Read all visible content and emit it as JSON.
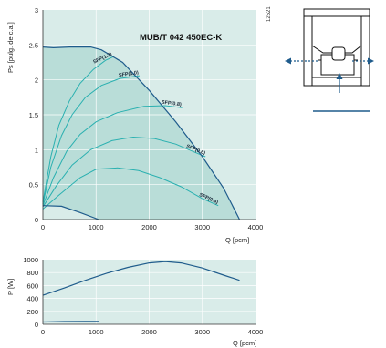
{
  "side_number": "12521",
  "chart_data": [
    {
      "type": "line",
      "title": "MUB/T 042 450EC-K",
      "xlabel": "Q [pcm]",
      "ylabel": "Ps [pulg. de c.a.]",
      "xlim": [
        0,
        4000
      ],
      "ylim": [
        0,
        3
      ],
      "xticks": [
        0,
        1000,
        2000,
        3000,
        4000
      ],
      "yticks": [
        0,
        0.5,
        1,
        1.5,
        2,
        2.5,
        3
      ],
      "grid": true,
      "colors": {
        "plot_bg": "#d9ece9",
        "operating_area": "#b9ddd8",
        "curve": "#1f5c8c",
        "sfp_curve": "#2ab0b0"
      },
      "fan_curve": {
        "x": [
          0,
          200,
          500,
          900,
          1100,
          1500,
          2000,
          2500,
          3000,
          3400,
          3700
        ],
        "y": [
          2.47,
          2.46,
          2.47,
          2.47,
          2.43,
          2.25,
          1.85,
          1.4,
          0.9,
          0.45,
          0.0
        ]
      },
      "min_curve": {
        "x": [
          0,
          350,
          700,
          1050
        ],
        "y": [
          0.2,
          0.19,
          0.1,
          0.0
        ]
      },
      "series": [
        {
          "name": "SFP(1.2)",
          "label": "SFP(1.2)",
          "x": [
            0,
            150,
            300,
            500,
            700,
            950,
            1180,
            1320
          ],
          "y": [
            0.25,
            0.9,
            1.35,
            1.7,
            1.95,
            2.15,
            2.28,
            2.33
          ]
        },
        {
          "name": "SFP(1.0)",
          "label": "SFP(1.0)",
          "x": [
            0,
            150,
            350,
            550,
            800,
            1100,
            1450,
            1820
          ],
          "y": [
            0.22,
            0.75,
            1.2,
            1.5,
            1.75,
            1.92,
            2.02,
            2.06
          ]
        },
        {
          "name": "SFP(0.8)",
          "label": "SFP(0.8)",
          "x": [
            0,
            200,
            450,
            700,
            1000,
            1400,
            1900,
            2300,
            2620
          ],
          "y": [
            0.2,
            0.6,
            0.98,
            1.22,
            1.4,
            1.53,
            1.62,
            1.63,
            1.6
          ]
        },
        {
          "name": "SFP(0.6)",
          "label": "SFP(0.6)",
          "x": [
            0,
            250,
            550,
            900,
            1300,
            1700,
            2100,
            2500,
            2900,
            3060
          ],
          "y": [
            0.18,
            0.48,
            0.78,
            1.0,
            1.13,
            1.18,
            1.16,
            1.08,
            0.95,
            0.9
          ]
        },
        {
          "name": "SFP(0.4)",
          "label": "SFP(0.4)",
          "x": [
            0,
            300,
            700,
            1000,
            1400,
            1800,
            2200,
            2600,
            3000,
            3300
          ],
          "y": [
            0.15,
            0.35,
            0.6,
            0.72,
            0.74,
            0.7,
            0.6,
            0.47,
            0.3,
            0.2
          ]
        }
      ]
    },
    {
      "type": "line",
      "xlabel": "Q [pcm]",
      "ylabel": "P [W]",
      "xlim": [
        0,
        4000
      ],
      "ylim": [
        0,
        1000
      ],
      "xticks": [
        0,
        1000,
        2000,
        3000,
        4000
      ],
      "yticks": [
        0,
        200,
        400,
        600,
        800,
        1000
      ],
      "grid": true,
      "series": [
        {
          "x": [
            0,
            400,
            800,
            1200,
            1600,
            2000,
            2300,
            2600,
            3000,
            3400,
            3700
          ],
          "y": [
            450,
            560,
            680,
            790,
            880,
            950,
            970,
            950,
            870,
            760,
            680
          ]
        },
        {
          "x": [
            0,
            400,
            800,
            1050
          ],
          "y": [
            35,
            42,
            45,
            45
          ]
        }
      ]
    }
  ]
}
